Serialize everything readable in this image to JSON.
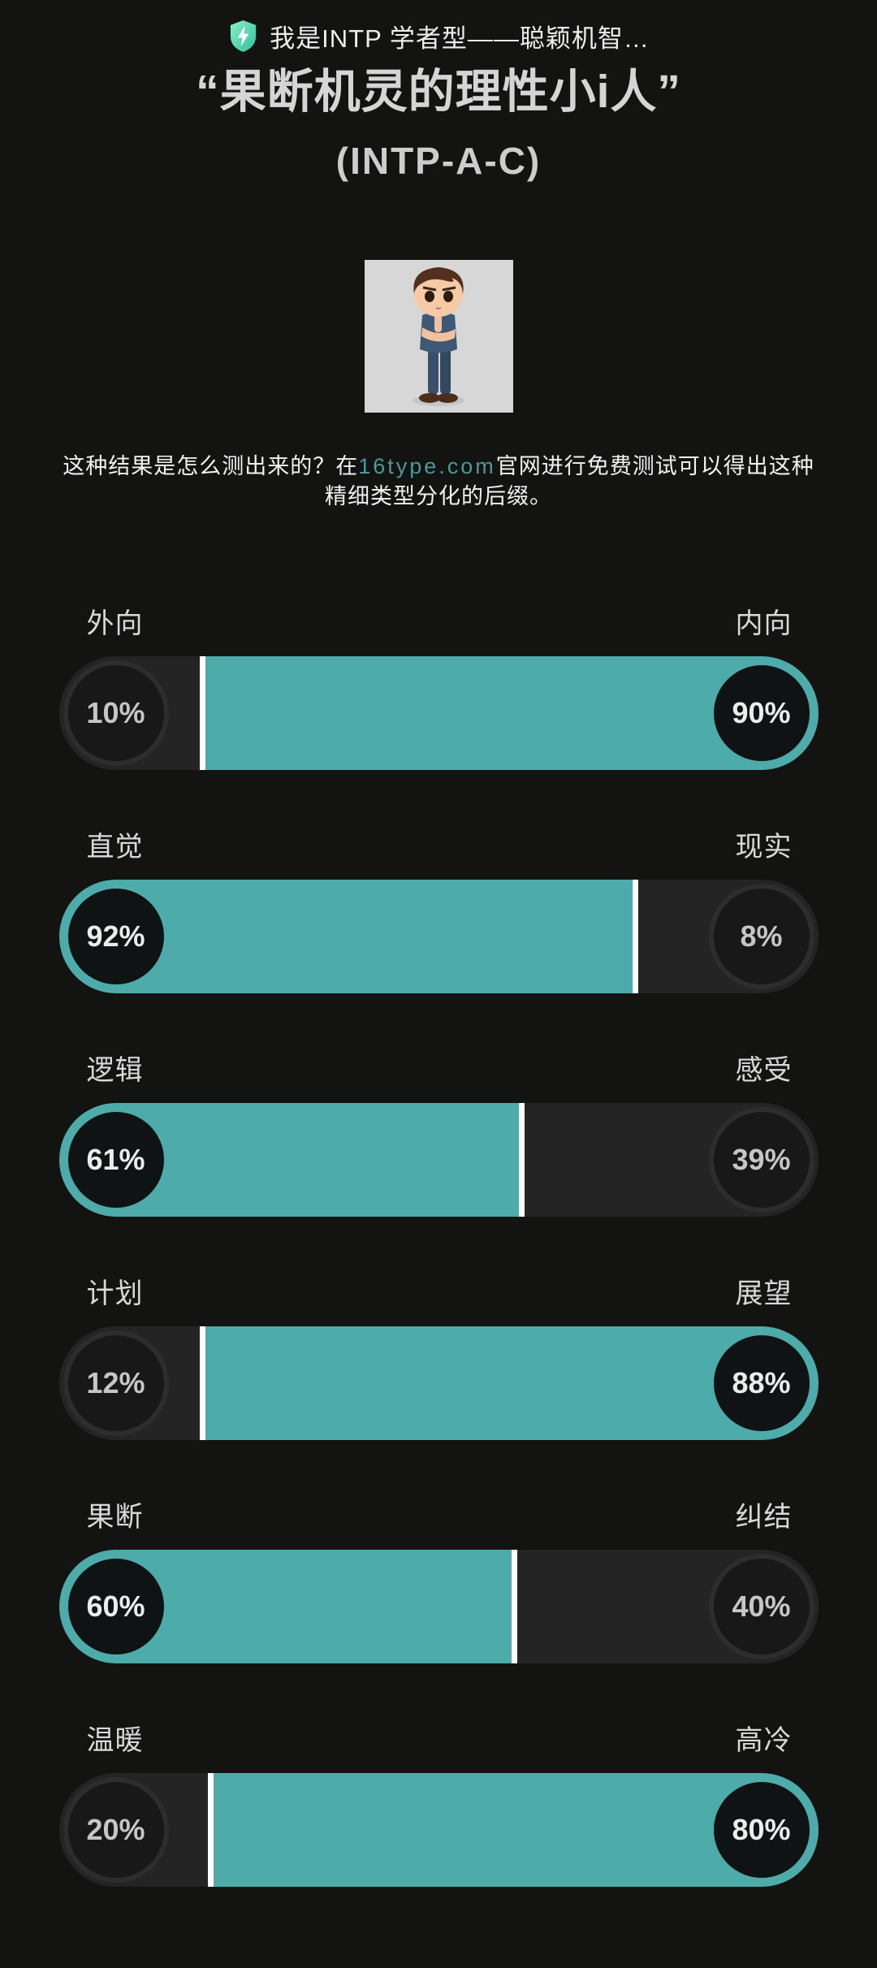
{
  "page": {
    "background": "#131312",
    "accent_color": "#4dabaa",
    "recessive_bar_color": "#242424",
    "divider_color": "#ffffff"
  },
  "header": {
    "icon": "shield-lightning",
    "title": "我是INTP 学者型——聪颖机智…"
  },
  "hero": {
    "title": "“果断机灵的理性小i人”",
    "type_code": "(INTP-A-C)",
    "avatar": "cartoon-man-thinking"
  },
  "description": {
    "before_link": "这种结果是怎么测出来的？在",
    "link": "16type.com",
    "after_link": "官网进行免费测试可以得出这种精细类型分化的后缀。"
  },
  "chart_data": {
    "type": "bar",
    "legend_position": "none",
    "rows": [
      {
        "left_label": "外向",
        "right_label": "内向",
        "left_percent": 10,
        "right_percent": 90,
        "left_text": "10%",
        "right_text": "90%",
        "dominant": "right"
      },
      {
        "left_label": "直觉",
        "right_label": "现实",
        "left_percent": 92,
        "right_percent": 8,
        "left_text": "92%",
        "right_text": "8%",
        "dominant": "left"
      },
      {
        "left_label": "逻辑",
        "right_label": "感受",
        "left_percent": 61,
        "right_percent": 39,
        "left_text": "61%",
        "right_text": "39%",
        "dominant": "left"
      },
      {
        "left_label": "计划",
        "right_label": "展望",
        "left_percent": 12,
        "right_percent": 88,
        "left_text": "12%",
        "right_text": "88%",
        "dominant": "right"
      },
      {
        "left_label": "果断",
        "right_label": "纠结",
        "left_percent": 60,
        "right_percent": 40,
        "left_text": "60%",
        "right_text": "40%",
        "dominant": "left"
      },
      {
        "left_label": "温暖",
        "right_label": "高冷",
        "left_percent": 20,
        "right_percent": 80,
        "left_text": "20%",
        "right_text": "80%",
        "dominant": "right"
      }
    ]
  }
}
